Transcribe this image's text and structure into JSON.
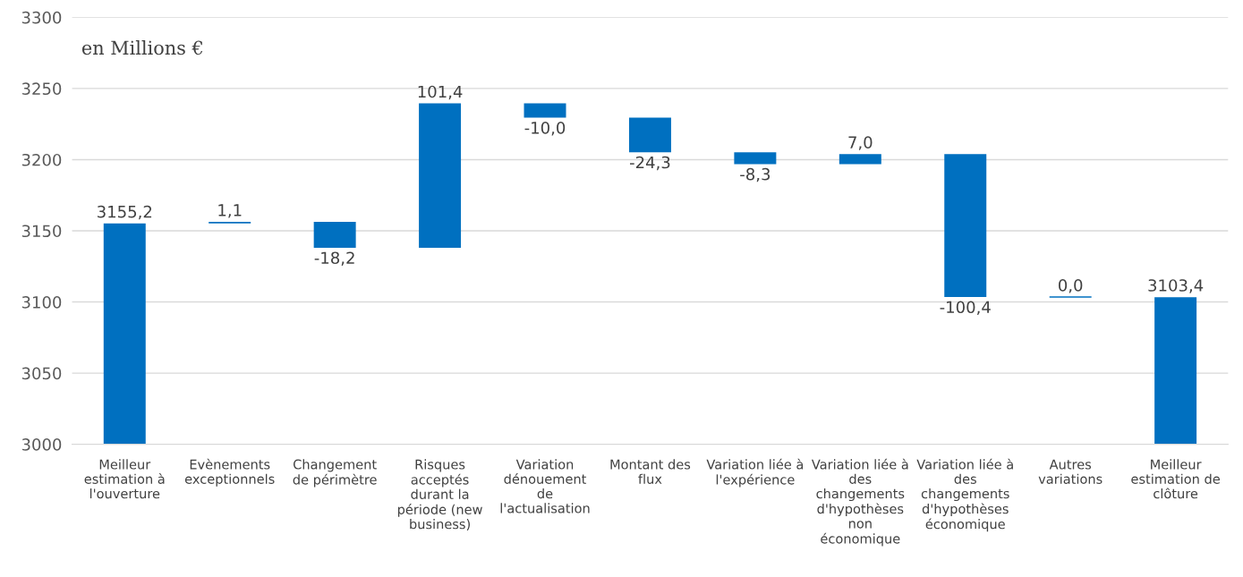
{
  "chart_data": {
    "type": "bar",
    "categories": [
      "Meilleur\nestimation à\nl'ouverture",
      "Evènements\nexceptionnels",
      "Changement\nde périmètre",
      "Risques\nacceptés\ndurant la\npériode (new\nbusiness)",
      "Variation\ndénouement\nde\nl'actualisation",
      "Montant des\nflux",
      "Variation liée à\nl'expérience",
      "Variation liée à\ndes\nchangements\nd'hypothèses\nnon\néconomique",
      "Variation liée à\ndes\nchangements\nd'hypothèses\néconomique",
      "Autres\nvariations",
      "Meilleur\nestimation de\nclôture"
    ],
    "values": [
      3155.2,
      1.1,
      -18.2,
      101.4,
      -10.0,
      -24.3,
      -8.3,
      7.0,
      -100.4,
      0.0,
      3103.4
    ],
    "base": [
      null,
      3155.2,
      3156.3,
      3138.1,
      3239.5,
      3229.5,
      3205.2,
      3196.9,
      3203.9,
      3103.5,
      null
    ],
    "value_labels": [
      "3155,2",
      "1,1",
      "-18,2",
      "101,4",
      "-10,0",
      "-24,3",
      "-8,3",
      "7,0",
      "-100,4",
      "0,0",
      "3103,4"
    ],
    "color": "#0070c0",
    "ylim": [
      3000,
      3300
    ],
    "yticks": [
      3000,
      3050,
      3100,
      3150,
      3200,
      3250,
      3300
    ],
    "grid": "y",
    "legend": false,
    "annotations": [
      "en Millions €"
    ]
  }
}
